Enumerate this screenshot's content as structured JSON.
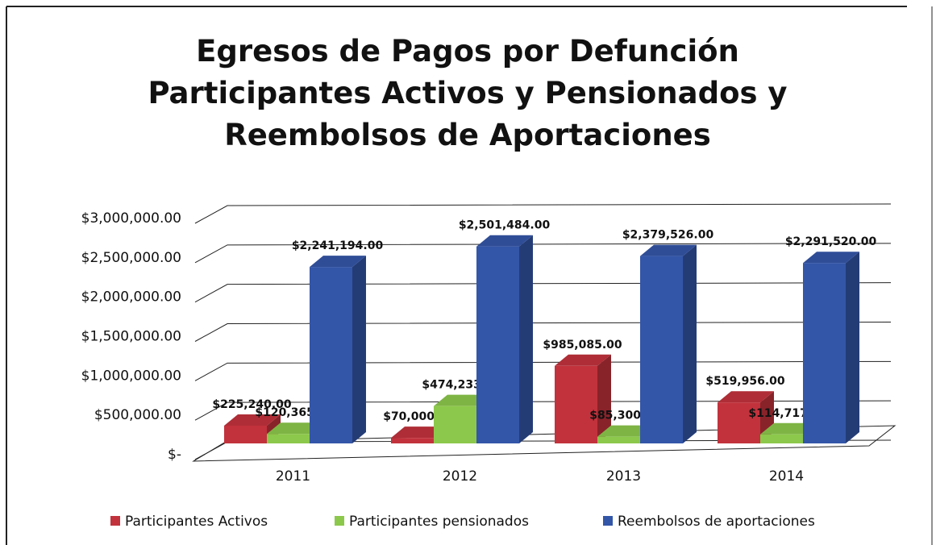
{
  "chart_data": {
    "type": "bar3d",
    "title": "Egresos de Pagos por Defunción Participantes Activos y Pensionados y Reembolsos de Aportaciones",
    "categories": [
      "2011",
      "2012",
      "2013",
      "2014"
    ],
    "series": [
      {
        "name": "Participantes Activos",
        "color": "#c2323c",
        "values": [
          225240,
          70000,
          985085,
          519956
        ],
        "value_labels": [
          "$225,240.00",
          "$70,000.00",
          "$985,085.00",
          "$519,956.00"
        ]
      },
      {
        "name": "Participantes pensionados",
        "color": "#8cc84b",
        "values": [
          120365,
          474233,
          85300,
          114717
        ],
        "value_labels": [
          "$120,365.00",
          "$474,233.00",
          "$85,300.00",
          "$114,717.00"
        ]
      },
      {
        "name": "Reembolsos de aportaciones",
        "color": "#3456a8",
        "values": [
          2241194,
          2501484,
          2379526,
          2291520
        ],
        "value_labels": [
          "$2,241,194.00",
          "$2,501,484.00",
          "$2,379,526.00",
          "$2,291,520.00"
        ]
      }
    ],
    "ylim": [
      0,
      3000000
    ],
    "yticks": [
      {
        "value": 0,
        "label": "$-"
      },
      {
        "value": 500000,
        "label": "$500,000.00"
      },
      {
        "value": 1000000,
        "label": "$1,000,000.00"
      },
      {
        "value": 1500000,
        "label": "$1,500,000.00"
      },
      {
        "value": 2000000,
        "label": "$2,000,000.00"
      },
      {
        "value": 2500000,
        "label": "$2,500,000.00"
      },
      {
        "value": 3000000,
        "label": "$3,000,000.00"
      }
    ],
    "grid": true
  }
}
